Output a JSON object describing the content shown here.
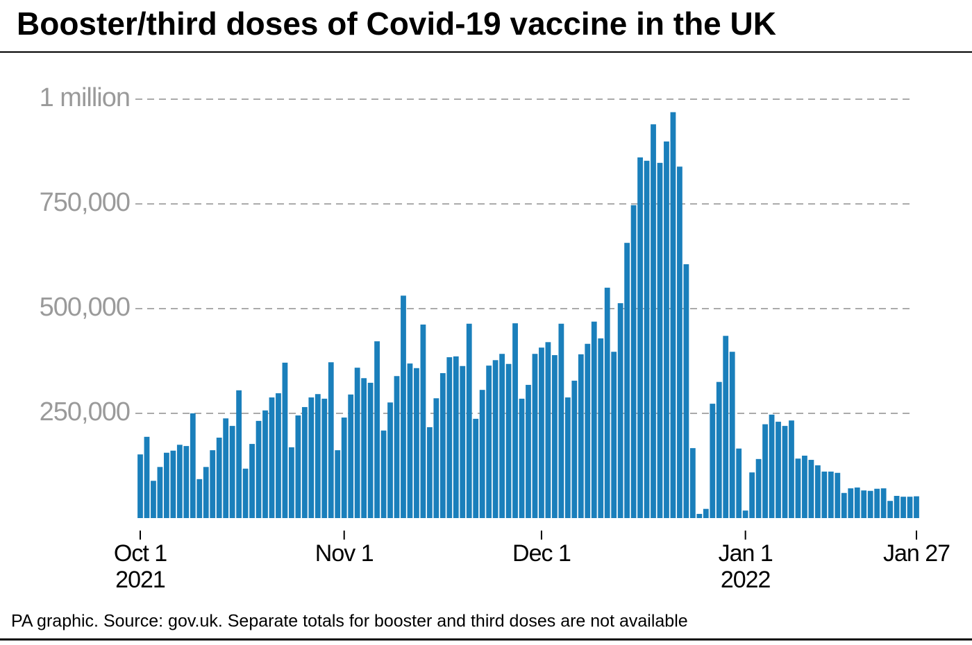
{
  "chart_data": {
    "type": "bar",
    "title": "Booster/third doses of Covid-19 vaccine in the UK",
    "note": "PA graphic. Source: gov.uk. Separate totals for booster and third doses are not available",
    "color": "#1a7fbb",
    "grid": true,
    "ylim": [
      0,
      1000000
    ],
    "yticks": [
      {
        "value": 250000,
        "label": "250,000"
      },
      {
        "value": 500000,
        "label": "500,000"
      },
      {
        "value": 750000,
        "label": "750,000"
      },
      {
        "value": 1000000,
        "label": "1 million"
      }
    ],
    "xticks": [
      {
        "value": "2021-10-01",
        "label": "Oct 1",
        "year": "2021"
      },
      {
        "value": "2021-11-01",
        "label": "Nov 1"
      },
      {
        "value": "2021-12-01",
        "label": "Dec 1"
      },
      {
        "value": "2022-01-01",
        "label": "Jan 1",
        "year": "2022"
      },
      {
        "value": "2022-01-27",
        "label": "Jan 27"
      }
    ],
    "x": [
      "2021-10-01",
      "2021-10-02",
      "2021-10-03",
      "2021-10-04",
      "2021-10-05",
      "2021-10-06",
      "2021-10-07",
      "2021-10-08",
      "2021-10-09",
      "2021-10-10",
      "2021-10-11",
      "2021-10-12",
      "2021-10-13",
      "2021-10-14",
      "2021-10-15",
      "2021-10-16",
      "2021-10-17",
      "2021-10-18",
      "2021-10-19",
      "2021-10-20",
      "2021-10-21",
      "2021-10-22",
      "2021-10-23",
      "2021-10-24",
      "2021-10-25",
      "2021-10-26",
      "2021-10-27",
      "2021-10-28",
      "2021-10-29",
      "2021-10-30",
      "2021-10-31",
      "2021-11-01",
      "2021-11-02",
      "2021-11-03",
      "2021-11-04",
      "2021-11-05",
      "2021-11-06",
      "2021-11-07",
      "2021-11-08",
      "2021-11-09",
      "2021-11-10",
      "2021-11-11",
      "2021-11-12",
      "2021-11-13",
      "2021-11-14",
      "2021-11-15",
      "2021-11-16",
      "2021-11-17",
      "2021-11-18",
      "2021-11-19",
      "2021-11-20",
      "2021-11-21",
      "2021-11-22",
      "2021-11-23",
      "2021-11-24",
      "2021-11-25",
      "2021-11-26",
      "2021-11-27",
      "2021-11-28",
      "2021-11-29",
      "2021-11-30",
      "2021-12-01",
      "2021-12-02",
      "2021-12-03",
      "2021-12-04",
      "2021-12-05",
      "2021-12-06",
      "2021-12-07",
      "2021-12-08",
      "2021-12-09",
      "2021-12-10",
      "2021-12-11",
      "2021-12-12",
      "2021-12-13",
      "2021-12-14",
      "2021-12-15",
      "2021-12-16",
      "2021-12-17",
      "2021-12-18",
      "2021-12-19",
      "2021-12-20",
      "2021-12-21",
      "2021-12-22",
      "2021-12-23",
      "2021-12-24",
      "2021-12-25",
      "2021-12-26",
      "2021-12-27",
      "2021-12-28",
      "2021-12-29",
      "2021-12-30",
      "2021-12-31",
      "2022-01-01",
      "2022-01-02",
      "2022-01-03",
      "2022-01-04",
      "2022-01-05",
      "2022-01-06",
      "2022-01-07",
      "2022-01-08",
      "2022-01-09",
      "2022-01-10",
      "2022-01-11",
      "2022-01-12",
      "2022-01-13",
      "2022-01-14",
      "2022-01-15",
      "2022-01-16",
      "2022-01-17",
      "2022-01-18",
      "2022-01-19",
      "2022-01-20",
      "2022-01-21",
      "2022-01-22",
      "2022-01-23",
      "2022-01-24",
      "2022-01-25",
      "2022-01-26",
      "2022-01-27"
    ],
    "values": [
      152000,
      194000,
      89000,
      122000,
      156000,
      161000,
      175000,
      172000,
      250000,
      93000,
      122000,
      162000,
      192000,
      238000,
      220000,
      305000,
      118000,
      177000,
      232000,
      257000,
      288000,
      298000,
      371000,
      169000,
      245000,
      265000,
      288000,
      296000,
      285000,
      372000,
      162000,
      240000,
      295000,
      359000,
      334000,
      323000,
      422000,
      209000,
      276000,
      339000,
      531000,
      369000,
      358000,
      462000,
      217000,
      286000,
      346000,
      384000,
      386000,
      363000,
      464000,
      237000,
      306000,
      364000,
      377000,
      392000,
      368000,
      465000,
      285000,
      318000,
      392000,
      407000,
      420000,
      389000,
      464000,
      288000,
      328000,
      391000,
      416000,
      469000,
      429000,
      550000,
      397000,
      513000,
      657000,
      747000,
      861000,
      853000,
      940000,
      848000,
      899000,
      969000,
      839000,
      606000,
      167000,
      10000,
      22000,
      273000,
      325000,
      435000,
      397000,
      166000,
      18000,
      109000,
      141000,
      224000,
      247000,
      230000,
      220000,
      233000,
      142000,
      149000,
      139000,
      126000,
      111000,
      111000,
      108000,
      60000,
      71000,
      73000,
      66000,
      65000,
      70000,
      71000,
      41000,
      53000,
      51000,
      51000,
      52000
    ]
  }
}
